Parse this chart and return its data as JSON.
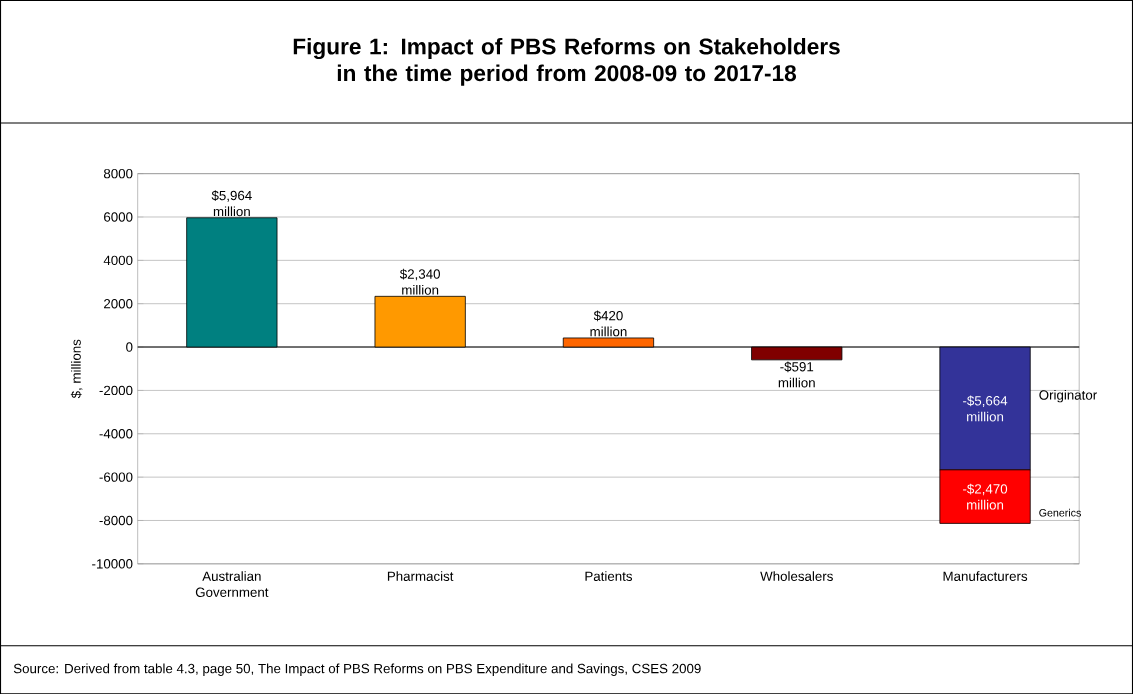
{
  "chart_data": {
    "type": "bar",
    "title": "Figure 1: Impact of PBS Reforms on Stakeholders in the time period from 2008-09 to 2017-18",
    "ylabel": "$, millions",
    "categories": [
      "Australian Government",
      "Pharmacist",
      "Patients",
      "Wholesalers",
      "Manufacturers"
    ],
    "stacked": true,
    "series": [
      {
        "colors": [
          "#008080",
          "#ff9900",
          "#ff6600",
          "#800000",
          "#333399"
        ],
        "values": [
          5964,
          2340,
          420,
          -591,
          -5664
        ],
        "value_labels": [
          "$5,964 million",
          "$2,340 million",
          "$420 million",
          "-$591 million",
          "-$5,664 million"
        ]
      },
      {
        "color": "#ff0000",
        "values": [
          null,
          null,
          null,
          null,
          -2470
        ],
        "value_labels": [
          null,
          null,
          null,
          null,
          "-$2,470 million"
        ]
      }
    ],
    "ylim": [
      -10000,
      8000
    ],
    "yticks": [
      -10000,
      -8000,
      -6000,
      -4000,
      -2000,
      0,
      2000,
      4000,
      6000,
      8000
    ],
    "grid": "y",
    "annotations": [
      "Originator",
      "Generics",
      "Source: Derived from table 4.3, page 50, The Impact of PBS Reforms on PBS Expenditure and Savings, CSES 2009"
    ]
  }
}
